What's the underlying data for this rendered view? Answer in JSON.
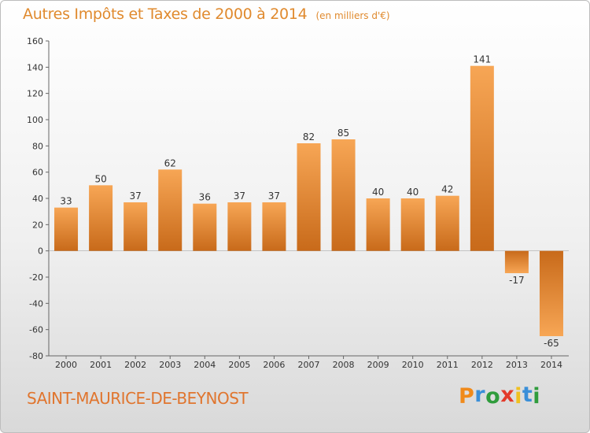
{
  "header": {
    "title": "Autres Impôts et Taxes de 2000 à 2014",
    "subtitle": "(en milliers d'€)"
  },
  "footer": {
    "commune": "SAINT-MAURICE-DE-BEYNOST",
    "logo_text": "Proxiti"
  },
  "colors": {
    "title": "#e08a2e",
    "commune": "#e0752e",
    "bar_light": "#f7a655",
    "bar_dark": "#c86a1a",
    "logo_letters": [
      "#f08a1a",
      "#3a8fd8",
      "#2f9c3c",
      "#e33a2a",
      "#f0c020",
      "#3a8fd8",
      "#2f9c3c"
    ]
  },
  "chart_data": {
    "type": "bar",
    "categories": [
      "2000",
      "2001",
      "2002",
      "2003",
      "2004",
      "2005",
      "2006",
      "2007",
      "2008",
      "2009",
      "2010",
      "2011",
      "2012",
      "2013",
      "2014"
    ],
    "values": [
      33,
      50,
      37,
      62,
      36,
      37,
      37,
      82,
      85,
      40,
      40,
      42,
      141,
      -17,
      -65
    ],
    "data_labels": [
      "33",
      "50",
      "37",
      "62",
      "36",
      "37",
      "37",
      "82",
      "85",
      "40",
      "40",
      "42",
      "141",
      "-17",
      "-65"
    ],
    "title": "Autres Impôts et Taxes de 2000 à 2014",
    "xlabel": "",
    "ylabel": "",
    "ylim": [
      -80,
      160
    ],
    "yticks": [
      -80,
      -60,
      -40,
      -20,
      0,
      20,
      40,
      60,
      80,
      100,
      120,
      140,
      160
    ],
    "grid": false,
    "legend": "none"
  }
}
